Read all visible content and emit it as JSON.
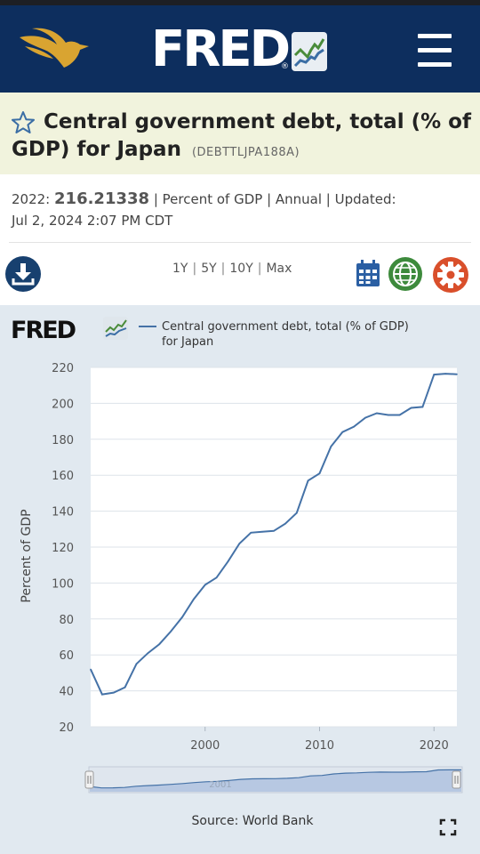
{
  "header": {
    "logo_text": "FRED",
    "logo_reg": "®",
    "eagle_icon": "eagle-logo-icon",
    "menu_icon": "hamburger-menu-icon",
    "accent": "#0d2e5e"
  },
  "series": {
    "title": "Central government debt, total (% of GDP) for Japan",
    "id": "(DEBTTLJPA188A)",
    "latest_label": "2022:",
    "latest_value": "216.21338",
    "meta_rest": " | Percent of GDP | Annual | Updated:",
    "updated": "Jul 2, 2024 2:07 PM CDT"
  },
  "toolbar": {
    "download_icon": "download-icon",
    "ranges": [
      "1Y",
      "5Y",
      "10Y",
      "Max"
    ],
    "calendar_icon": "calendar-icon",
    "globe_icon": "globe-icon",
    "settings_icon": "gear-icon"
  },
  "chart_data": {
    "type": "line",
    "title": "",
    "brand": "FRED",
    "legend": "Central government debt, total (% of GDP) for Japan",
    "legend_lines": [
      "Central government debt, total (% of GDP)",
      "for Japan"
    ],
    "legend_placement": "top",
    "xlabel": "",
    "ylabel": "Percent of GDP",
    "xlim": [
      1990,
      2022
    ],
    "ylim": [
      20,
      220
    ],
    "yticks": [
      20,
      40,
      60,
      80,
      100,
      120,
      140,
      160,
      180,
      200,
      220
    ],
    "xticks": [
      2000,
      2010,
      2020
    ],
    "grid": true,
    "line_color": "#4572a7",
    "x": [
      1990,
      1991,
      1992,
      1993,
      1994,
      1995,
      1996,
      1997,
      1998,
      1999,
      2000,
      2001,
      2002,
      2003,
      2004,
      2005,
      2006,
      2007,
      2008,
      2009,
      2010,
      2011,
      2012,
      2013,
      2014,
      2015,
      2016,
      2017,
      2018,
      2019,
      2020,
      2021,
      2022
    ],
    "values": [
      52,
      38,
      39,
      42,
      55,
      61,
      66,
      73,
      81,
      91,
      99,
      103,
      112,
      122,
      128,
      128.5,
      129,
      133,
      139,
      157,
      161,
      176,
      184,
      187,
      192,
      194.5,
      193.5,
      193.5,
      197.5,
      198,
      216,
      216.5,
      216.2
    ],
    "source": "Source: World Bank",
    "navigator_label": "2001"
  },
  "footer": {
    "fullscreen_icon": "fullscreen-icon"
  }
}
